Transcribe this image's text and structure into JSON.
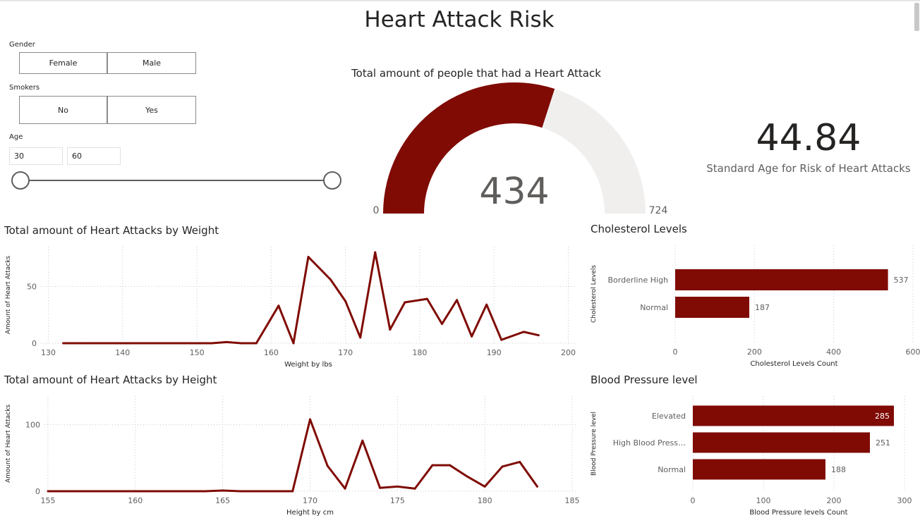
{
  "page": {
    "title": "Heart Attack Risk"
  },
  "filters": {
    "gender": {
      "label": "Gender",
      "options": [
        "Female",
        "Male"
      ]
    },
    "smokers": {
      "label": "Smokers",
      "options": [
        "No",
        "Yes"
      ]
    },
    "age": {
      "label": "Age",
      "min": "30",
      "max": "60",
      "range_min": 30,
      "range_max": 60
    }
  },
  "gauge": {
    "title": "Total amount of people that had a Heart Attack",
    "value": 434,
    "value_label": "434",
    "min": 0,
    "min_label": "0",
    "max": 724,
    "max_label": "724",
    "fill_color": "#7f0b04",
    "track_color": "#f0efee"
  },
  "kpi": {
    "value": "44.84",
    "label": "Standard Age for Risk of Heart Attacks"
  },
  "chart_data": [
    {
      "type": "line",
      "title": "Total amount of Heart Attacks by Weight",
      "xlabel": "Weight by lbs",
      "ylabel": "Amount of Heart Attacks",
      "xlim": [
        129,
        201
      ],
      "ylim": [
        0,
        85
      ],
      "xticks": [
        130,
        140,
        150,
        160,
        170,
        180,
        190,
        200
      ],
      "yticks": [
        0,
        50
      ],
      "color": "#7f0b04",
      "x": [
        132,
        135,
        140,
        145,
        150,
        152,
        154,
        156,
        158,
        161,
        163,
        165,
        168,
        170,
        172,
        174,
        176,
        178,
        181,
        183,
        185,
        187,
        189,
        191,
        194,
        196
      ],
      "y": [
        0,
        0,
        0,
        0,
        0,
        0,
        1,
        0,
        0,
        33,
        0,
        76,
        56,
        37,
        5,
        80,
        12,
        36,
        39,
        17,
        38,
        6,
        34,
        3,
        10,
        7
      ]
    },
    {
      "type": "line",
      "title": "Total amount of Heart Attacks by Height",
      "xlabel": "Height by cm",
      "ylabel": "Amount of Heart Attacks",
      "xlim": [
        154.8,
        185.2
      ],
      "ylim": [
        0,
        143
      ],
      "xticks": [
        155,
        160,
        165,
        170,
        175,
        180,
        185
      ],
      "yticks": [
        0,
        100
      ],
      "color": "#7f0b04",
      "x": [
        155,
        160,
        164,
        165,
        166,
        167,
        168,
        169,
        170,
        171,
        172,
        173,
        174,
        175,
        176,
        177,
        178,
        179,
        180,
        181,
        182,
        183
      ],
      "y": [
        0,
        0,
        0,
        1,
        0,
        0,
        0,
        0,
        108,
        38,
        4,
        76,
        5,
        7,
        4,
        39,
        39,
        22,
        7,
        37,
        44,
        7
      ]
    },
    {
      "type": "bar",
      "orientation": "horizontal",
      "title": "Cholesterol Levels",
      "xlabel": "Cholesterol Levels Count",
      "ylabel": "Cholesterol Levels",
      "xlim": [
        0,
        600
      ],
      "xticks": [
        0,
        200,
        400,
        600
      ],
      "categories": [
        "Borderline High",
        "Normal"
      ],
      "values": [
        537,
        187
      ],
      "value_labels": [
        "537",
        "187"
      ],
      "color": "#7f0b04"
    },
    {
      "type": "bar",
      "orientation": "horizontal",
      "title": "Blood Pressure level",
      "xlabel": "Blood Pressure levels Count",
      "ylabel": "Blood Pressure level",
      "xlim": [
        0,
        300
      ],
      "xticks": [
        0,
        100,
        200,
        300
      ],
      "categories": [
        "Elevated",
        "High Blood Press…",
        "Normal"
      ],
      "values": [
        285,
        251,
        188
      ],
      "value_labels": [
        "285",
        "251",
        "188"
      ],
      "color": "#7f0b04"
    }
  ]
}
